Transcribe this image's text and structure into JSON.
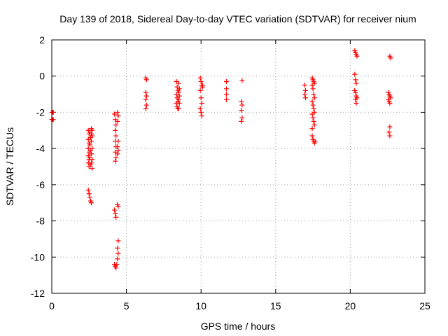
{
  "chart_data": {
    "type": "scatter",
    "title": "Day 139 of 2018, Sidereal Day-to-day VTEC variation (SDTVAR) for receiver nium",
    "xlabel": "GPS time / hours",
    "ylabel": "SDTVAR / TECUs",
    "xlim": [
      0,
      25
    ],
    "ylim": [
      -12,
      2
    ],
    "xticks": [
      0,
      5,
      10,
      15,
      20,
      25
    ],
    "yticks": [
      -12,
      -10,
      -8,
      -6,
      -4,
      -2,
      0,
      2
    ],
    "grid": true,
    "marker": "+",
    "color": "#ff0000",
    "series": [
      {
        "name": "SDTVAR",
        "points": [
          [
            0.0,
            -2.0
          ],
          [
            0.05,
            -2.0
          ],
          [
            0.1,
            -2.0
          ],
          [
            0.0,
            -2.4
          ],
          [
            0.05,
            -2.4
          ],
          [
            0.1,
            -2.4
          ],
          [
            2.45,
            -3.0
          ],
          [
            2.5,
            -3.2
          ],
          [
            2.45,
            -3.5
          ],
          [
            2.5,
            -3.7
          ],
          [
            2.45,
            -4.0
          ],
          [
            2.5,
            -4.2
          ],
          [
            2.45,
            -4.4
          ],
          [
            2.5,
            -4.6
          ],
          [
            2.45,
            -4.8
          ],
          [
            2.5,
            -5.0
          ],
          [
            2.55,
            -3.1
          ],
          [
            2.6,
            -3.4
          ],
          [
            2.55,
            -3.8
          ],
          [
            2.6,
            -4.1
          ],
          [
            2.55,
            -4.5
          ],
          [
            2.6,
            -4.9
          ],
          [
            2.65,
            -2.9
          ],
          [
            2.7,
            -3.0
          ],
          [
            2.65,
            -3.2
          ],
          [
            2.7,
            -3.3
          ],
          [
            2.65,
            -3.6
          ],
          [
            2.7,
            -4.0
          ],
          [
            2.65,
            -4.3
          ],
          [
            2.7,
            -4.6
          ],
          [
            2.65,
            -4.8
          ],
          [
            2.7,
            -5.1
          ],
          [
            2.45,
            -6.3
          ],
          [
            2.5,
            -6.5
          ],
          [
            2.55,
            -6.7
          ],
          [
            2.6,
            -6.9
          ],
          [
            2.65,
            -7.0
          ],
          [
            4.2,
            -2.1
          ],
          [
            4.25,
            -2.4
          ],
          [
            4.3,
            -2.7
          ],
          [
            4.25,
            -3.0
          ],
          [
            4.3,
            -3.3
          ],
          [
            4.25,
            -3.6
          ],
          [
            4.3,
            -3.9
          ],
          [
            4.25,
            -4.2
          ],
          [
            4.3,
            -4.5
          ],
          [
            4.25,
            -4.7
          ],
          [
            4.4,
            -2.0
          ],
          [
            4.45,
            -2.2
          ],
          [
            4.4,
            -2.5
          ],
          [
            4.45,
            -3.6
          ],
          [
            4.4,
            -3.9
          ],
          [
            4.45,
            -4.1
          ],
          [
            4.4,
            -4.3
          ],
          [
            4.2,
            -7.4
          ],
          [
            4.25,
            -7.6
          ],
          [
            4.3,
            -7.8
          ],
          [
            4.4,
            -7.1
          ],
          [
            4.45,
            -7.2
          ],
          [
            4.45,
            -9.1
          ],
          [
            4.4,
            -9.5
          ],
          [
            4.45,
            -9.8
          ],
          [
            4.4,
            -10.1
          ],
          [
            4.2,
            -10.4
          ],
          [
            4.25,
            -10.5
          ],
          [
            4.3,
            -10.6
          ],
          [
            4.35,
            -10.4
          ],
          [
            6.3,
            -0.1
          ],
          [
            6.35,
            -0.2
          ],
          [
            6.3,
            -0.9
          ],
          [
            6.35,
            -1.1
          ],
          [
            6.3,
            -1.3
          ],
          [
            6.35,
            -1.6
          ],
          [
            6.3,
            -1.8
          ],
          [
            8.35,
            -0.3
          ],
          [
            8.4,
            -0.6
          ],
          [
            8.45,
            -0.8
          ],
          [
            8.35,
            -1.0
          ],
          [
            8.4,
            -1.2
          ],
          [
            8.45,
            -1.4
          ],
          [
            8.35,
            -1.5
          ],
          [
            8.4,
            -1.7
          ],
          [
            8.45,
            -1.8
          ],
          [
            8.5,
            -0.4
          ],
          [
            8.55,
            -0.7
          ],
          [
            8.5,
            -0.9
          ],
          [
            8.55,
            -1.1
          ],
          [
            8.5,
            -1.3
          ],
          [
            8.55,
            -1.5
          ],
          [
            8.5,
            -1.8
          ],
          [
            9.95,
            -0.1
          ],
          [
            10.0,
            -0.3
          ],
          [
            10.05,
            -0.5
          ],
          [
            10.1,
            -0.6
          ],
          [
            9.95,
            -0.8
          ],
          [
            10.0,
            -1.2
          ],
          [
            10.05,
            -1.5
          ],
          [
            9.95,
            -1.8
          ],
          [
            10.0,
            -2.0
          ],
          [
            10.05,
            -2.2
          ],
          [
            10.1,
            -0.5
          ],
          [
            11.7,
            -0.3
          ],
          [
            11.7,
            -0.7
          ],
          [
            11.7,
            -1.0
          ],
          [
            11.7,
            -1.3
          ],
          [
            12.75,
            -0.25
          ],
          [
            12.7,
            -1.4
          ],
          [
            12.75,
            -1.6
          ],
          [
            12.7,
            -1.9
          ],
          [
            12.75,
            -2.3
          ],
          [
            12.7,
            -2.5
          ],
          [
            16.95,
            -0.5
          ],
          [
            17.0,
            -0.8
          ],
          [
            16.95,
            -1.0
          ],
          [
            17.0,
            -1.2
          ],
          [
            17.45,
            -0.1
          ],
          [
            17.5,
            -0.2
          ],
          [
            17.55,
            -0.3
          ],
          [
            17.6,
            -0.4
          ],
          [
            17.45,
            -0.5
          ],
          [
            17.5,
            -0.7
          ],
          [
            17.55,
            -1.0
          ],
          [
            17.6,
            -1.2
          ],
          [
            17.45,
            -1.4
          ],
          [
            17.5,
            -1.6
          ],
          [
            17.55,
            -1.8
          ],
          [
            17.6,
            -2.0
          ],
          [
            17.45,
            -2.1
          ],
          [
            17.5,
            -2.3
          ],
          [
            17.55,
            -2.5
          ],
          [
            17.6,
            -2.7
          ],
          [
            17.45,
            -2.9
          ],
          [
            17.45,
            -3.3
          ],
          [
            17.5,
            -3.5
          ],
          [
            17.55,
            -3.6
          ],
          [
            17.6,
            -3.7
          ],
          [
            17.65,
            -3.6
          ],
          [
            20.3,
            1.4
          ],
          [
            20.35,
            1.3
          ],
          [
            20.4,
            1.2
          ],
          [
            20.45,
            1.1
          ],
          [
            20.3,
            0.1
          ],
          [
            20.35,
            -0.2
          ],
          [
            20.4,
            -0.4
          ],
          [
            20.3,
            -0.8
          ],
          [
            20.35,
            -0.9
          ],
          [
            20.4,
            -1.1
          ],
          [
            20.45,
            -1.2
          ],
          [
            20.35,
            -1.3
          ],
          [
            20.4,
            -1.5
          ],
          [
            22.65,
            1.1
          ],
          [
            22.7,
            1.0
          ],
          [
            22.55,
            -0.9
          ],
          [
            22.6,
            -1.0
          ],
          [
            22.65,
            -1.1
          ],
          [
            22.7,
            -1.2
          ],
          [
            22.55,
            -1.3
          ],
          [
            22.6,
            -1.4
          ],
          [
            22.65,
            -1.5
          ],
          [
            22.65,
            -2.8
          ],
          [
            22.6,
            -3.1
          ],
          [
            22.65,
            -3.3
          ]
        ]
      }
    ]
  }
}
